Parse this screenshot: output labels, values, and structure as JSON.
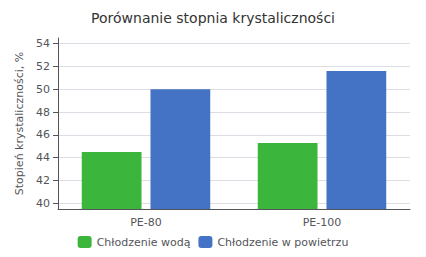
{
  "chart_data": {
    "type": "bar",
    "title": "Porównanie stopnia krystaliczności",
    "ylabel": "Stopień krystaliczności, %",
    "categories": [
      "PE-80",
      "PE-100"
    ],
    "series": [
      {
        "name": "Chłodzenie wodą",
        "color": "#3cb53c",
        "values": [
          44.5,
          45.3
        ]
      },
      {
        "name": "Chłodzenie w powietrzu",
        "color": "#4472C4",
        "values": [
          50.0,
          51.6
        ]
      }
    ],
    "ylim": [
      39.5,
      54.5
    ],
    "yticks": [
      40,
      42,
      44,
      46,
      48,
      50,
      52,
      54
    ],
    "grid": true,
    "legend": "bottom"
  }
}
